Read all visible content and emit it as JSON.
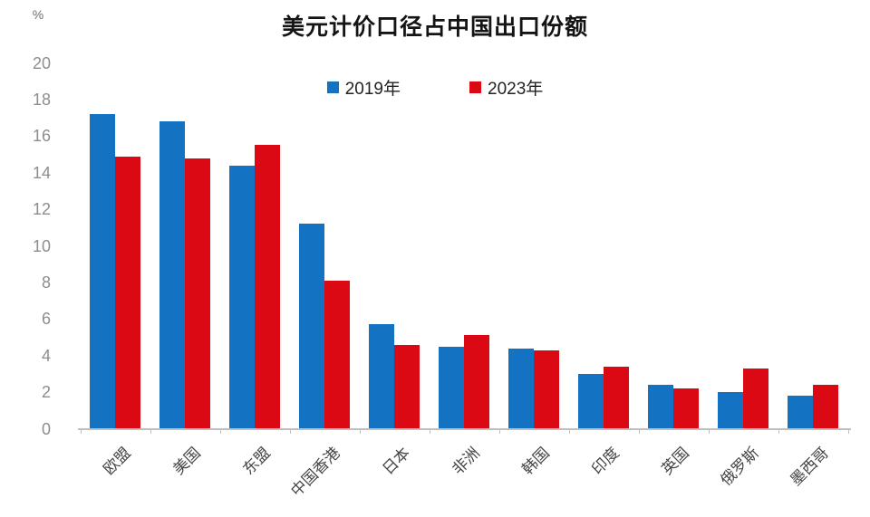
{
  "header": {
    "unit_label": "%",
    "title": "美元计价口径占中国出口份额"
  },
  "legend": {
    "items": [
      {
        "label": "2019年",
        "color": "#1373C2"
      },
      {
        "label": "2023年",
        "color": "#DB0914"
      }
    ]
  },
  "chart_data": {
    "type": "bar",
    "title": "美元计价口径占中国出口份额",
    "unit": "%",
    "categories": [
      "欧盟",
      "美国",
      "东盟",
      "中国香港",
      "日本",
      "非洲",
      "韩国",
      "印度",
      "英国",
      "俄罗斯",
      "墨西哥"
    ],
    "series": [
      {
        "name": "2019年",
        "color": "#1373C2",
        "values": [
          17.2,
          16.8,
          14.4,
          11.2,
          5.7,
          4.5,
          4.4,
          3.0,
          2.4,
          2.0,
          1.8
        ]
      },
      {
        "name": "2023年",
        "color": "#DB0914",
        "values": [
          14.9,
          14.8,
          15.5,
          8.1,
          4.6,
          5.1,
          4.3,
          3.4,
          2.2,
          3.3,
          2.4
        ]
      }
    ],
    "ylim": [
      0,
      20
    ],
    "yticks": [
      0,
      2,
      4,
      6,
      8,
      10,
      12,
      14,
      16,
      18,
      20
    ],
    "grid": false,
    "legend_position": "top-center",
    "axis_color": "#BFBFBF",
    "y_tick_label_color": "#8D8D8D",
    "x_tick_label_color": "#454545"
  }
}
